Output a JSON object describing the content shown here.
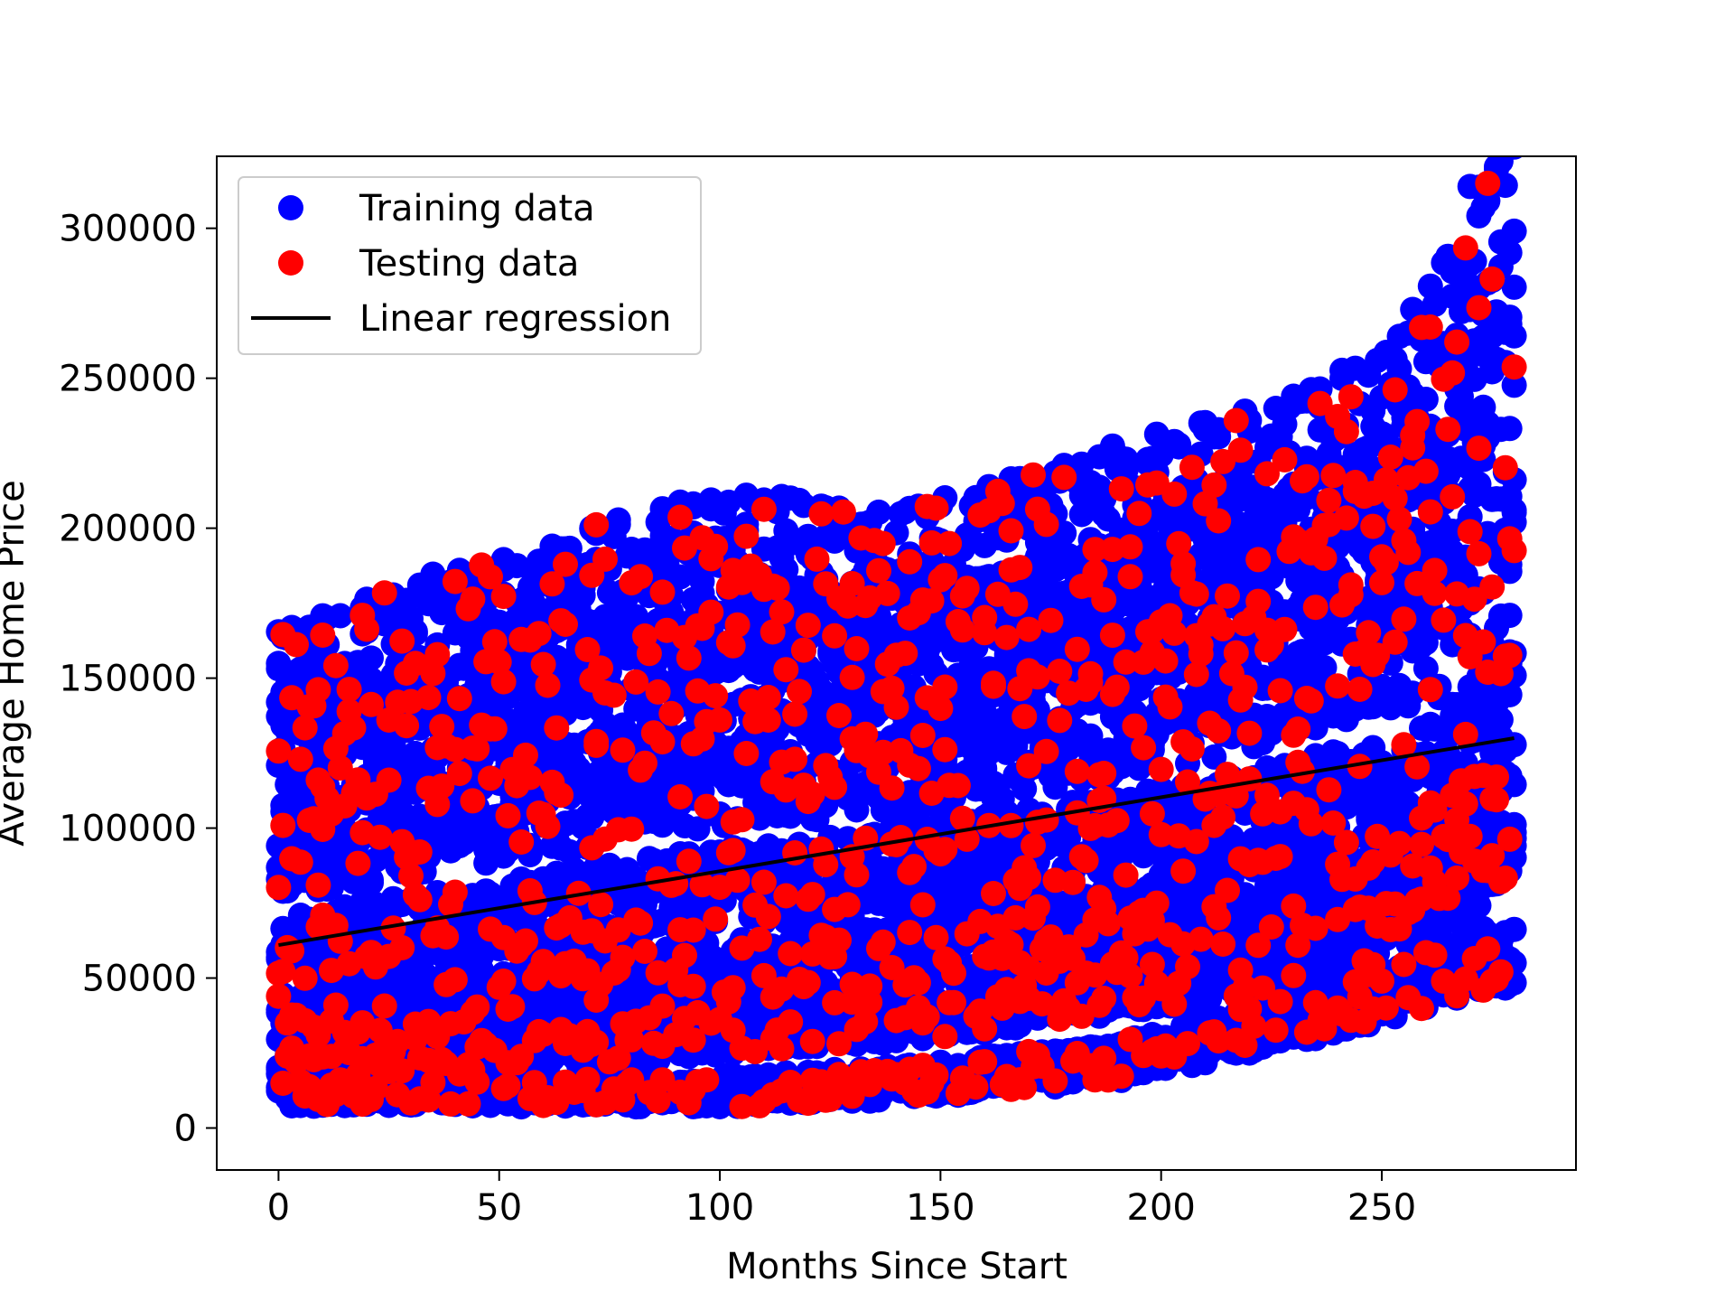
{
  "chart_data": {
    "type": "scatter",
    "title": "",
    "xlabel": "Months Since Start",
    "ylabel": "Average Home Price",
    "xlim": [
      -14,
      294
    ],
    "ylim": [
      -14000,
      324000
    ],
    "xticks": [
      0,
      50,
      100,
      150,
      200,
      250
    ],
    "yticks": [
      0,
      50000,
      100000,
      150000,
      200000,
      250000,
      300000
    ],
    "grid": false,
    "legend_position": "top-left",
    "legend": [
      {
        "label": "Training data",
        "kind": "marker",
        "color": "#0000ff"
      },
      {
        "label": "Testing data",
        "kind": "marker",
        "color": "#ff0000"
      },
      {
        "label": "Linear regression",
        "kind": "line",
        "color": "#000000"
      }
    ],
    "series": [
      {
        "name": "Training data",
        "color": "#0000ff",
        "marker": "circle",
        "bands": [
          {
            "x": [
              0,
              100,
              140,
              190,
              240,
              270,
              280
            ],
            "y": [
              9000,
              12000,
              15000,
              22000,
              40000,
              55000,
              58000
            ]
          },
          {
            "x": [
              0,
              100,
              150,
              200,
              240,
              265,
              280
            ],
            "y": [
              20000,
              32000,
              38000,
              50000,
              60000,
              80000,
              95000
            ]
          },
          {
            "x": [
              0,
              100,
              150,
              200,
              250,
              270,
              280
            ],
            "y": [
              38000,
              52000,
              60000,
              70000,
              85000,
              100000,
              110000
            ]
          },
          {
            "x": [
              0,
              100,
              150,
              200,
              245,
              270,
              280
            ],
            "y": [
              60000,
              80000,
              88000,
              98000,
              110000,
              125000,
              140000
            ]
          },
          {
            "x": [
              0,
              100,
              150,
              200,
              250,
              270,
              280
            ],
            "y": [
              92000,
              118000,
              125000,
              140000,
              160000,
              170000,
              185000
            ]
          },
          {
            "x": [
              0,
              100,
              150,
              200,
              240,
              265,
              280
            ],
            "y": [
              125000,
              158000,
              160000,
              175000,
              195000,
              215000,
              245000
            ]
          },
          {
            "x": [
              0,
              50,
              100,
              140,
              190,
              230,
              255,
              270,
              280
            ],
            "y": [
              146000,
              168000,
              187000,
              180000,
              200000,
              215000,
              235000,
              280000,
              310000
            ]
          }
        ]
      },
      {
        "name": "Testing data",
        "color": "#ff0000",
        "marker": "circle",
        "bands": [
          {
            "x": [
              0,
              100,
              140,
              190,
              240,
              270,
              280
            ],
            "y": [
              9000,
              12000,
              15000,
              22000,
              40000,
              55000,
              58000
            ]
          },
          {
            "x": [
              0,
              100,
              150,
              200,
              240,
              265,
              280
            ],
            "y": [
              20000,
              32000,
              38000,
              50000,
              60000,
              80000,
              95000
            ]
          },
          {
            "x": [
              0,
              100,
              150,
              200,
              250,
              270,
              280
            ],
            "y": [
              38000,
              52000,
              60000,
              70000,
              85000,
              100000,
              110000
            ]
          },
          {
            "x": [
              0,
              100,
              150,
              200,
              245,
              270,
              280
            ],
            "y": [
              60000,
              80000,
              88000,
              98000,
              110000,
              125000,
              140000
            ]
          },
          {
            "x": [
              0,
              100,
              150,
              200,
              250,
              270,
              280
            ],
            "y": [
              92000,
              118000,
              125000,
              140000,
              160000,
              170000,
              185000
            ]
          },
          {
            "x": [
              0,
              100,
              150,
              200,
              240,
              265,
              280
            ],
            "y": [
              125000,
              158000,
              160000,
              175000,
              195000,
              215000,
              245000
            ]
          },
          {
            "x": [
              0,
              50,
              100,
              140,
              190,
              230,
              255,
              270,
              280
            ],
            "y": [
              146000,
              168000,
              187000,
              180000,
              200000,
              215000,
              235000,
              280000,
              310000
            ]
          }
        ]
      },
      {
        "name": "Linear regression",
        "type": "line",
        "color": "#000000",
        "x": [
          0,
          280
        ],
        "y": [
          61000,
          130000
        ]
      }
    ]
  }
}
